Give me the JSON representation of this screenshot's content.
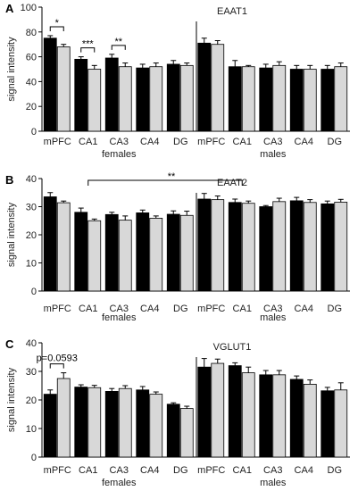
{
  "chart_data": [
    {
      "panel": "A",
      "type": "bar",
      "title": "EAAT1",
      "ylabel": "signal intensity",
      "ylim": [
        0,
        100
      ],
      "yticks": [
        0,
        20,
        40,
        60,
        80,
        100
      ],
      "categories": [
        "mPFC",
        "CA1",
        "CA3",
        "CA4",
        "DG",
        "mPFC",
        "CA1",
        "CA3",
        "CA4",
        "DG"
      ],
      "groups": [
        {
          "label": "females",
          "range": [
            0,
            4
          ]
        },
        {
          "label": "males",
          "range": [
            5,
            9
          ]
        }
      ],
      "colors": {
        "dark": "#000000",
        "light": "#d8d8d8"
      },
      "series": [
        {
          "values": [
            75,
            58,
            59,
            51,
            54,
            71,
            52,
            51,
            50,
            50
          ],
          "errors": [
            2,
            2,
            3,
            3,
            3,
            4,
            5,
            3,
            3,
            3
          ]
        },
        {
          "values": [
            68,
            50,
            52,
            52,
            53,
            70,
            52,
            53,
            50,
            52
          ],
          "errors": [
            2,
            3,
            3,
            3,
            2,
            3,
            1,
            3,
            3,
            3
          ]
        }
      ],
      "annotations": [
        {
          "type": "pair",
          "category": 0,
          "text": "*"
        },
        {
          "type": "pair",
          "category": 1,
          "text": "***"
        },
        {
          "type": "pair",
          "category": 2,
          "text": "**"
        }
      ]
    },
    {
      "panel": "B",
      "type": "bar",
      "title": "EAAT2",
      "ylabel": "signal intensity",
      "ylim": [
        0,
        40
      ],
      "yticks": [
        0,
        10,
        20,
        30,
        40
      ],
      "categories": [
        "mPFC",
        "CA1",
        "CA3",
        "CA4",
        "DG",
        "mPFC",
        "CA1",
        "CA3",
        "CA4",
        "DG"
      ],
      "groups": [
        {
          "label": "females",
          "range": [
            0,
            4
          ]
        },
        {
          "label": "males",
          "range": [
            5,
            9
          ]
        }
      ],
      "colors": {
        "dark": "#000000",
        "light": "#d8d8d8"
      },
      "series": [
        {
          "values": [
            33.5,
            28,
            27.2,
            27.8,
            27.3,
            32.7,
            31.5,
            30,
            32.1,
            31
          ],
          "errors": [
            1.5,
            1.5,
            0.8,
            1,
            1.2,
            2,
            1.2,
            0.4,
            1.2,
            1
          ]
        },
        {
          "values": [
            31.4,
            25,
            25.2,
            25.9,
            26.9,
            32.5,
            31.2,
            31.8,
            31.5,
            31.6
          ],
          "errors": [
            0.6,
            0.6,
            1.5,
            0.8,
            1.5,
            1.3,
            0.8,
            1.2,
            1,
            1
          ]
        }
      ],
      "annotations": [
        {
          "type": "bracket",
          "from": 1,
          "to": 6,
          "text": "**"
        }
      ]
    },
    {
      "panel": "C",
      "type": "bar",
      "title": "VGLUT1",
      "ylabel": "signal intensity",
      "ylim": [
        0,
        40
      ],
      "yticks": [
        0,
        10,
        20,
        30,
        40
      ],
      "categories": [
        "mPFC",
        "CA1",
        "CA3",
        "CA4",
        "DG",
        "mPFC",
        "CA1",
        "CA3",
        "CA4",
        "DG"
      ],
      "groups": [
        {
          "label": "females",
          "range": [
            0,
            4
          ]
        },
        {
          "label": "males",
          "range": [
            5,
            9
          ]
        }
      ],
      "colors": {
        "dark": "#000000",
        "light": "#d8d8d8"
      },
      "series": [
        {
          "values": [
            22,
            24.5,
            23,
            23.5,
            18.5,
            31.5,
            32,
            28.8,
            27.2,
            23.2
          ],
          "errors": [
            1.5,
            0.8,
            1,
            1.2,
            0.5,
            3,
            1,
            1.5,
            1.2,
            1.2
          ]
        },
        {
          "values": [
            27.5,
            24.3,
            24,
            22,
            17,
            32.8,
            29.5,
            28.8,
            25.5,
            23.5
          ],
          "errors": [
            2,
            0.8,
            1,
            0.8,
            0.8,
            1.5,
            2,
            1.5,
            1.5,
            2.5
          ]
        }
      ],
      "annotations": [
        {
          "type": "pair",
          "category": 0,
          "text": "p=0.0593"
        }
      ]
    }
  ]
}
